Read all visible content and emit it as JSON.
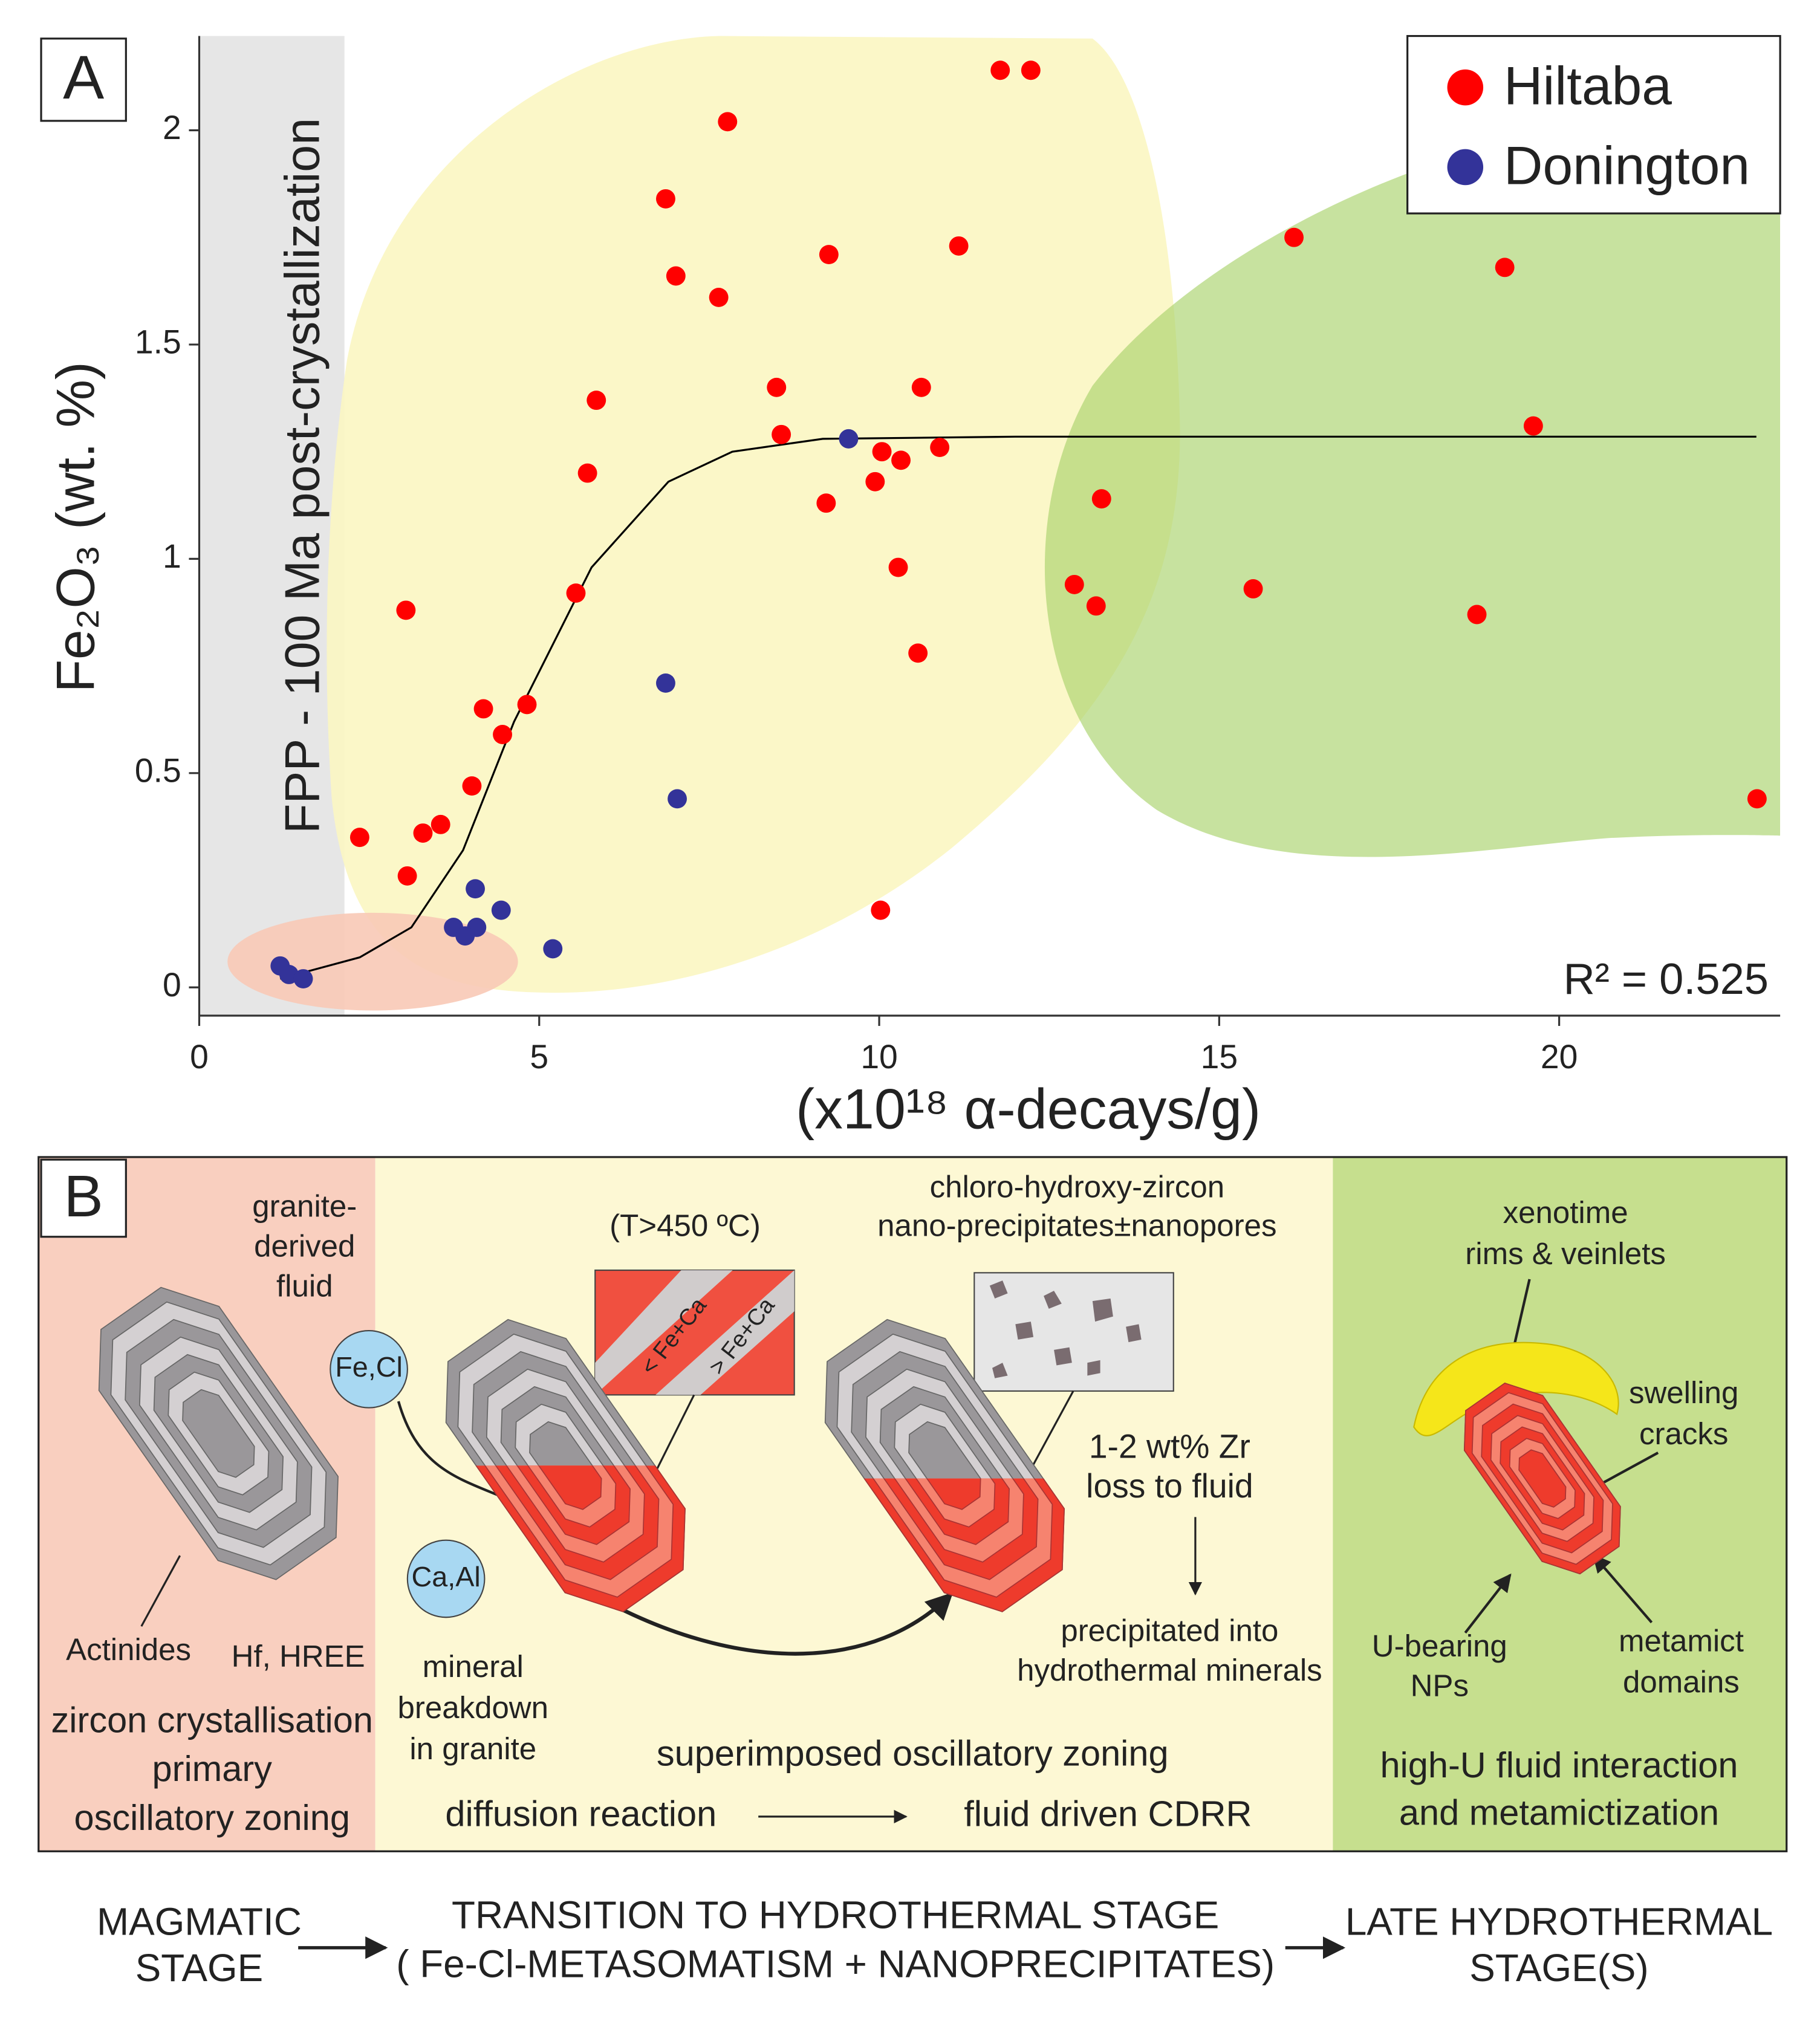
{
  "chart_data": {
    "type": "scatter",
    "panel_label": "A",
    "xlabel": "(x10¹⁸ α-decays/g)",
    "ylabel": "Fe₂O₃ (wt. %)",
    "xlim": [
      0,
      23.25
    ],
    "ylim": [
      -0.066,
      2.22
    ],
    "xticks": [
      0,
      5,
      10,
      15,
      20
    ],
    "yticks": [
      0,
      0.5,
      1,
      1.5,
      2
    ],
    "legend": "top-right",
    "band_label": "FPP - 100 Ma post-crystallization",
    "annotation": "R² = 0.525",
    "series": [
      {
        "name": "Hiltaba",
        "color": "#ff0000",
        "x": [
          11.78,
          12.23,
          7.77,
          6.86,
          7.01,
          9.26,
          11.17,
          7.64,
          16.1,
          19.2,
          8.49,
          10.62,
          5.84,
          8.56,
          19.62,
          10.04,
          10.32,
          10.89,
          9.94,
          5.71,
          13.27,
          9.22,
          10.28,
          12.87,
          13.19,
          15.5,
          18.79,
          3.04,
          5.54,
          10.57,
          4.82,
          4.18,
          4.46,
          4.01,
          3.55,
          3.29,
          2.36,
          3.06,
          22.91,
          10.02
        ],
        "values": [
          2.14,
          2.14,
          2.02,
          1.84,
          1.66,
          1.71,
          1.73,
          1.61,
          1.75,
          1.68,
          1.4,
          1.4,
          1.37,
          1.29,
          1.31,
          1.25,
          1.23,
          1.26,
          1.18,
          1.2,
          1.14,
          1.13,
          0.98,
          0.94,
          0.89,
          0.93,
          0.87,
          0.88,
          0.92,
          0.78,
          0.66,
          0.65,
          0.59,
          0.47,
          0.38,
          0.36,
          0.35,
          0.26,
          0.44,
          0.18
        ]
      },
      {
        "name": "Donington",
        "color": "#333399",
        "x": [
          1.19,
          1.32,
          1.53,
          9.55,
          6.86,
          7.03,
          4.06,
          4.44,
          3.74,
          4.08,
          3.91,
          5.2
        ],
        "values": [
          0.05,
          0.03,
          0.02,
          1.28,
          0.71,
          0.44,
          0.23,
          0.18,
          0.14,
          0.14,
          0.12,
          0.09
        ]
      }
    ],
    "fit_line": {
      "color": "#000000",
      "x": [
        1.19,
        2.36,
        3.12,
        3.88,
        4.63,
        5.77,
        6.9,
        7.84,
        9.17,
        12,
        22.9
      ],
      "values": [
        0.02,
        0.07,
        0.14,
        0.32,
        0.62,
        0.98,
        1.18,
        1.25,
        1.28,
        1.285,
        1.285
      ]
    }
  },
  "diagram": {
    "label": "B",
    "granite_fluid": [
      "granite-",
      "derived",
      "fluid"
    ],
    "fe_cl": "Fe,Cl",
    "ca_al": "Ca,Al",
    "actinides": "Actinides",
    "hf_hree": "Hf, HREE",
    "magmatic_caption": [
      "zircon crystallisation",
      "primary",
      "oscillatory zoning"
    ],
    "temperature": "(T>450 ºC)",
    "inset_less": "< Fe+Ca",
    "inset_more": "> Fe+Ca",
    "mineral_breakdown": [
      "mineral",
      "breakdown",
      "in granite"
    ],
    "nano": [
      "chloro-hydroxy-zircon",
      "nano-precipitates±nanopores"
    ],
    "zr_loss": [
      "1-2 wt% Zr",
      "loss to fluid"
    ],
    "precipitated": [
      "precipitated into",
      "hydrothermal minerals"
    ],
    "superimposed": "superimposed oscillatory zoning",
    "diffusion": "diffusion reaction",
    "fluid_driven": "fluid driven CDRR",
    "xenotime": [
      "xenotime",
      "rims & veinlets"
    ],
    "swelling": [
      "swelling",
      "cracks"
    ],
    "u_bearing": [
      "U-bearing",
      "NPs"
    ],
    "metamict": [
      "metamict",
      "domains"
    ],
    "late_caption": [
      "high-U fluid interaction",
      "and metamictization"
    ],
    "stage_magmatic": [
      "MAGMATIC",
      "STAGE"
    ],
    "stage_transition": [
      "TRANSITION TO HYDROTHERMAL STAGE",
      "( Fe-Cl-METASOMATISM + NANOPRECIPITATES)"
    ],
    "stage_late": [
      "LATE HYDROTHERMAL",
      "STAGE(S)"
    ]
  }
}
